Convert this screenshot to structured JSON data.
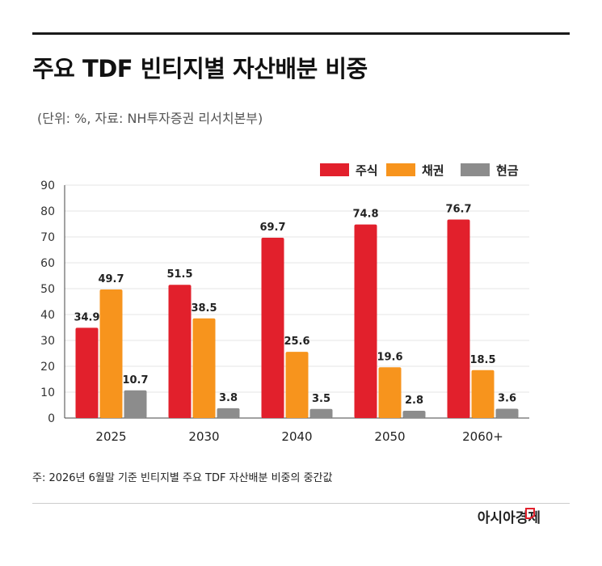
{
  "title": "주요 TDF 빈티지별 자산배분 비중",
  "subtitle": "(단위: %, 자료: NH투자증권 리서치본부)",
  "footnote": "주: 2026년 6월말 기준 빈티지별 주요 TDF 자산배분 비중의 중간값",
  "brand": "아시아경제",
  "colors": {
    "stock": "#e2202c",
    "bond": "#f7941d",
    "cash": "#8c8c8c"
  },
  "chart_data": {
    "type": "bar",
    "categories": [
      "2025",
      "2030",
      "2040",
      "2050",
      "2060+"
    ],
    "series": [
      {
        "name": "주식",
        "values": [
          34.9,
          51.5,
          69.7,
          74.8,
          76.7
        ]
      },
      {
        "name": "채권",
        "values": [
          49.7,
          38.5,
          25.6,
          19.6,
          18.5
        ]
      },
      {
        "name": "현금",
        "values": [
          10.7,
          3.8,
          3.5,
          2.8,
          3.6
        ]
      }
    ],
    "ylim": [
      0,
      90
    ],
    "yticks": [
      0,
      10,
      20,
      30,
      40,
      50,
      60,
      70,
      80,
      90
    ],
    "grid": true,
    "legend": "top-right"
  }
}
